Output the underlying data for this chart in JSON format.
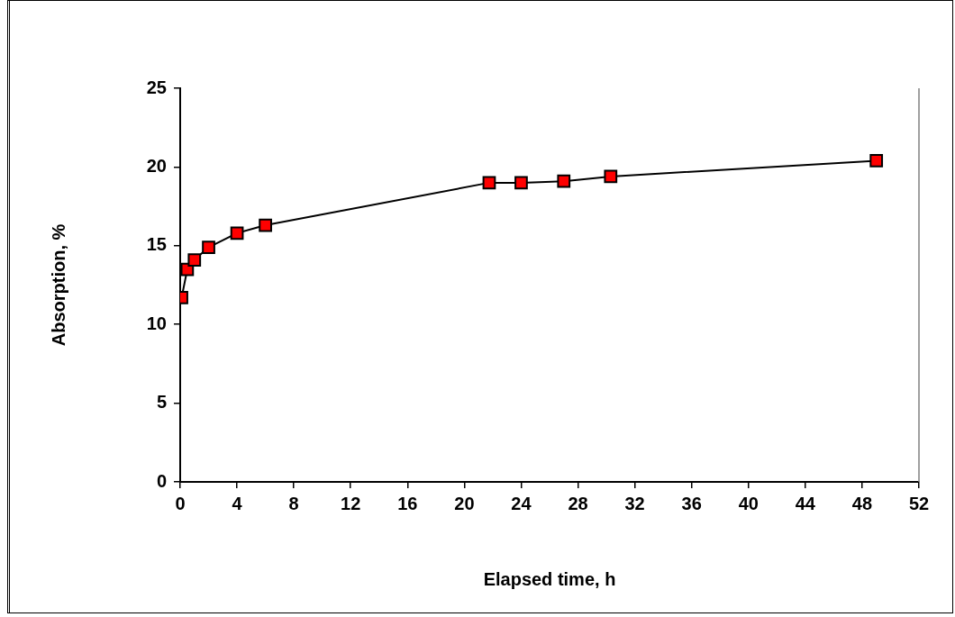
{
  "chart_data": {
    "type": "line",
    "xlabel": "Elapsed time, h",
    "ylabel": "Absorption, %",
    "x": [
      0.1,
      0.5,
      1,
      2,
      4,
      6,
      21.75,
      24,
      27,
      30.3,
      49
    ],
    "series": [
      {
        "color": "#ff0000",
        "values": [
          11.7,
          13.5,
          14.1,
          14.9,
          15.8,
          16.3,
          19.0,
          19.0,
          19.1,
          19.4,
          20.4
        ]
      }
    ],
    "xlim": [
      0,
      52
    ],
    "xticks": [
      0,
      4,
      8,
      12,
      16,
      20,
      24,
      28,
      32,
      36,
      40,
      44,
      48,
      52
    ],
    "ylim": [
      0,
      25
    ],
    "yticks": [
      0,
      5,
      10,
      15,
      20,
      25
    ],
    "grid": false,
    "legend": false,
    "marker": "square",
    "line_style": "solid"
  }
}
